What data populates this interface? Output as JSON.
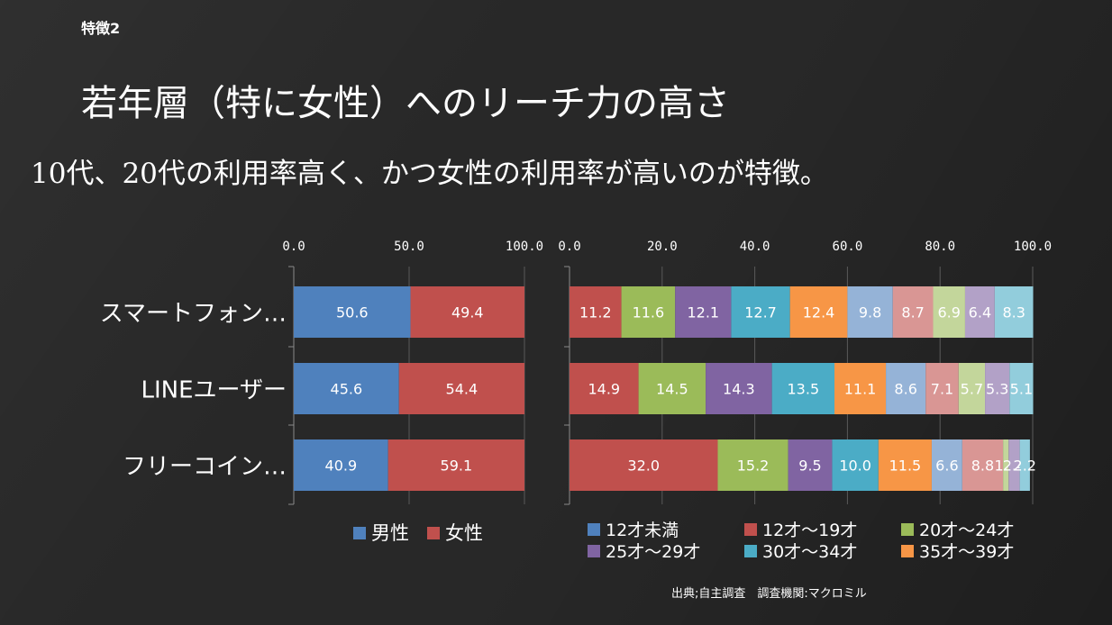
{
  "slide": {
    "tag": "特徴2",
    "title": "若年層（特に女性）へのリーチ力の高さ",
    "subtitle": "10代、20代の利用率高く、かつ女性の利用率が高いのが特徴。",
    "source": "出典;自主調査　調査機関:マクロミル"
  },
  "chart_data": [
    {
      "type": "bar",
      "orientation": "horizontal",
      "stacked": true,
      "categories": [
        "スマートフォン…",
        "LINEユーザー",
        "フリーコイン…"
      ],
      "xlim": [
        0,
        100
      ],
      "ticks": [
        "0.0",
        "50.0",
        "100.0"
      ],
      "series": [
        {
          "name": "男性",
          "color": "#4f81bd",
          "values": [
            50.6,
            45.6,
            40.9
          ]
        },
        {
          "name": "女性",
          "color": "#c0504d",
          "values": [
            49.4,
            54.4,
            59.1
          ]
        }
      ],
      "legend": "bottom"
    },
    {
      "type": "bar",
      "orientation": "horizontal",
      "stacked": true,
      "categories": [
        "スマートフォン…",
        "LINEユーザー",
        "フリーコイン…"
      ],
      "xlim": [
        0,
        100
      ],
      "ticks": [
        "0.0",
        "20.0",
        "40.0",
        "60.0",
        "80.0",
        "100.0"
      ],
      "series": [
        {
          "name": "12才未満",
          "color": "#4f81bd",
          "values": [
            0,
            0,
            0
          ]
        },
        {
          "name": "12才～19才",
          "color": "#c0504d",
          "values": [
            11.2,
            14.9,
            32.0
          ]
        },
        {
          "name": "20才～24才",
          "color": "#9bbb59",
          "values": [
            11.6,
            14.5,
            15.2
          ]
        },
        {
          "name": "25才～29才",
          "color": "#8064a2",
          "values": [
            12.1,
            14.3,
            9.5
          ]
        },
        {
          "name": "30才～34才",
          "color": "#4bacc6",
          "values": [
            12.7,
            13.5,
            10.0
          ]
        },
        {
          "name": "35才～39才",
          "color": "#f79646",
          "values": [
            12.4,
            11.1,
            11.5
          ]
        },
        {
          "color": "#95b3d7",
          "values": [
            9.8,
            8.6,
            6.6
          ]
        },
        {
          "color": "#d99694",
          "values": [
            8.7,
            7.1,
            8.8
          ]
        },
        {
          "color": "#c3d69b",
          "values": [
            6.9,
            5.7,
            1.2
          ]
        },
        {
          "color": "#b2a1c7",
          "values": [
            6.4,
            5.3,
            2.4
          ]
        },
        {
          "color": "#92cddc",
          "values": [
            8.3,
            5.1,
            2.2
          ]
        }
      ],
      "legend": "bottom"
    }
  ]
}
